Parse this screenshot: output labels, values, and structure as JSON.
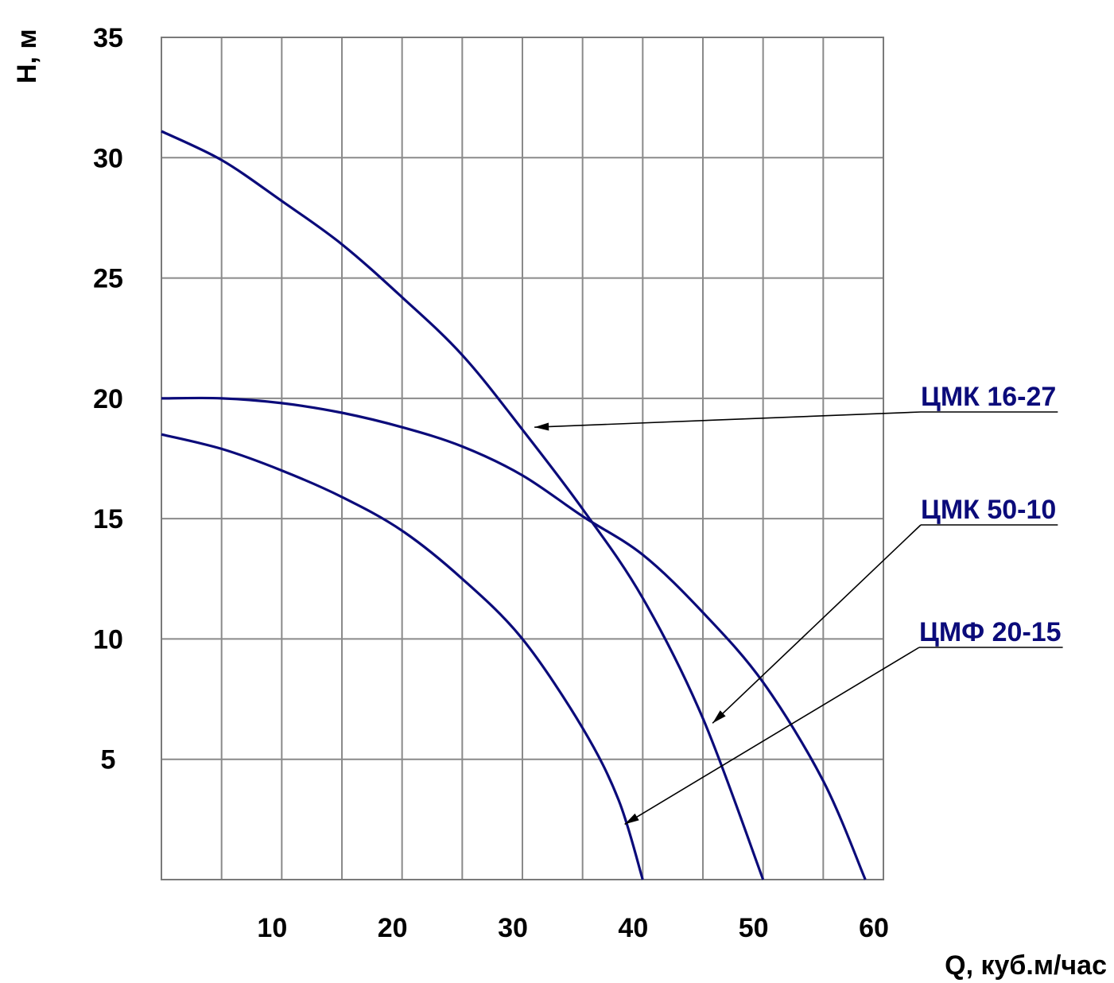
{
  "chart_data": {
    "type": "line",
    "xlabel": "Q, куб.м/час",
    "ylabel": "H, м",
    "xlim": [
      0,
      60
    ],
    "ylim": [
      0,
      35
    ],
    "x_ticks": [
      "10",
      "20",
      "30",
      "40",
      "50",
      "60"
    ],
    "y_ticks": [
      "5",
      "10",
      "15",
      "20",
      "25",
      "30",
      "35"
    ],
    "grid": true,
    "colors": {
      "curve": "#0b0b7a",
      "label": "#0b0b7a",
      "grid": "#8a8a8a"
    },
    "series": [
      {
        "name": "ЦМК 16-27",
        "x": [
          0,
          5,
          10,
          15,
          20,
          25,
          30,
          35,
          40,
          45,
          50
        ],
        "y": [
          31.1,
          29.9,
          28.2,
          26.4,
          24.2,
          21.8,
          18.7,
          15.4,
          11.7,
          6.7,
          0
        ]
      },
      {
        "name": "ЦМК 50-10",
        "x": [
          0,
          5,
          10,
          15,
          20,
          25,
          30,
          35,
          40,
          45,
          50,
          55,
          58.5
        ],
        "y": [
          20,
          20,
          19.8,
          19.4,
          18.8,
          18,
          16.8,
          15.1,
          13.5,
          11.1,
          8.2,
          4.1,
          0
        ]
      },
      {
        "name": "ЦМФ 20-15",
        "x": [
          0,
          5,
          10,
          15,
          20,
          25,
          30,
          35,
          38,
          40
        ],
        "y": [
          18.5,
          17.9,
          17,
          15.9,
          14.5,
          12.5,
          10,
          6.3,
          3.3,
          0
        ]
      }
    ],
    "annotations": [
      {
        "text": "ЦМК 16-27",
        "series": 0,
        "point": [
          31,
          18.8
        ]
      },
      {
        "text": "ЦМК 50-10",
        "series": 1,
        "point": [
          45.8,
          6.5
        ]
      },
      {
        "text": "ЦМФ 20-15",
        "series": 2,
        "point": [
          38.5,
          2.3
        ]
      }
    ]
  }
}
